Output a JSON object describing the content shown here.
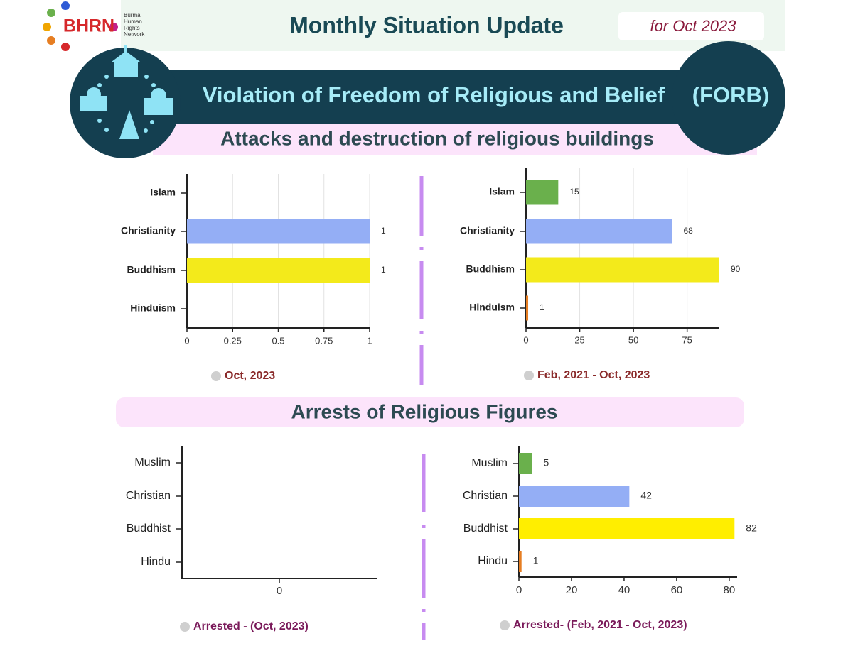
{
  "header": {
    "logo": "BHRN",
    "org_name": [
      "Burma",
      "Human",
      "Rights",
      "Network"
    ],
    "title": "Monthly Situation Update",
    "period": "for Oct 2023"
  },
  "banner": {
    "title": "Violation of Freedom of Religious and Belief",
    "abbr": "(FORB)"
  },
  "sections": [
    {
      "title": "Attacks and destruction of religious buildings"
    },
    {
      "title": "Arrests of Religious Figures"
    }
  ],
  "chart_data": [
    {
      "type": "hbar",
      "caption": "Oct, 2023",
      "categories": [
        "Islam",
        "Christianity",
        "Buddhism",
        "Hinduism"
      ],
      "values": [
        null,
        1,
        1,
        null
      ],
      "colors": [
        "#6ab04c",
        "#94aef5",
        "#f3ea1b",
        "#e67e22"
      ],
      "xlim": [
        0,
        1
      ],
      "xticks": [
        0,
        0.25,
        0.5,
        0.75,
        1
      ],
      "grid": true
    },
    {
      "type": "hbar",
      "caption": "Feb, 2021 - Oct, 2023",
      "categories": [
        "Islam",
        "Christianity",
        "Buddhism",
        "Hinduism"
      ],
      "values": [
        15,
        68,
        90,
        1
      ],
      "colors": [
        "#6ab04c",
        "#94aef5",
        "#f3ea1b",
        "#e67e22"
      ],
      "xlim": [
        0,
        90
      ],
      "xticks": [
        0,
        25,
        50,
        75
      ],
      "grid": true
    },
    {
      "type": "hbar",
      "caption": "Arrested - (Oct, 2023)",
      "categories": [
        "Muslim",
        "Christian",
        "Buddhist",
        "Hindu"
      ],
      "values": [
        null,
        null,
        null,
        null
      ],
      "colors": [
        "#6ab04c",
        "#94aef5",
        "#ffee00",
        "#e67e22"
      ],
      "xlim": [
        -1,
        1
      ],
      "xticks": [
        0
      ],
      "grid": false
    },
    {
      "type": "hbar",
      "caption": "Arrested- (Feb, 2021 - Oct, 2023)",
      "categories": [
        "Muslim",
        "Christian",
        "Buddhist",
        "Hindu"
      ],
      "values": [
        5,
        42,
        82,
        1
      ],
      "colors": [
        "#6ab04c",
        "#94aef5",
        "#ffee00",
        "#e67e22"
      ],
      "xlim": [
        0,
        83
      ],
      "xticks": [
        0,
        20,
        40,
        60,
        80
      ],
      "grid": false
    }
  ]
}
